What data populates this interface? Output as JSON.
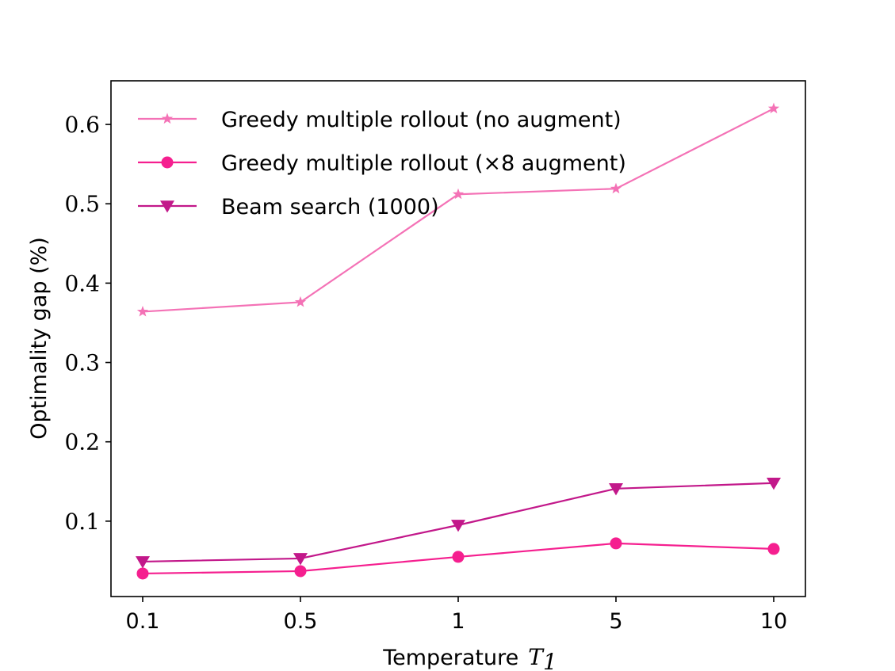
{
  "chart_data": {
    "type": "line",
    "categories": [
      "0.1",
      "0.5",
      "1",
      "5",
      "10"
    ],
    "xlabel": "Temperature",
    "xlabel_math": "T",
    "xlabel_math_sub": "1",
    "ylabel": "Optimality gap (%)",
    "ylim": [
      0.005,
      0.655
    ],
    "yticks": [
      0.1,
      0.2,
      0.3,
      0.4,
      0.5,
      0.6
    ],
    "ytick_labels": [
      "0.1",
      "0.2",
      "0.3",
      "0.4",
      "0.5",
      "0.6"
    ],
    "grid": false,
    "legend_position": "top-left",
    "series": [
      {
        "name": "Greedy multiple rollout (no augment)",
        "values": [
          0.364,
          0.376,
          0.512,
          0.519,
          0.62
        ],
        "color": "#f472b6",
        "marker": "star"
      },
      {
        "name": "Greedy multiple rollout (×8 augment)",
        "values": [
          0.034,
          0.037,
          0.055,
          0.072,
          0.065
        ],
        "color": "#f51f8f",
        "marker": "circle"
      },
      {
        "name": "Beam search (1000)",
        "values": [
          0.049,
          0.053,
          0.095,
          0.141,
          0.148
        ],
        "color": "#c2188a",
        "marker": "triangle-down"
      }
    ]
  }
}
